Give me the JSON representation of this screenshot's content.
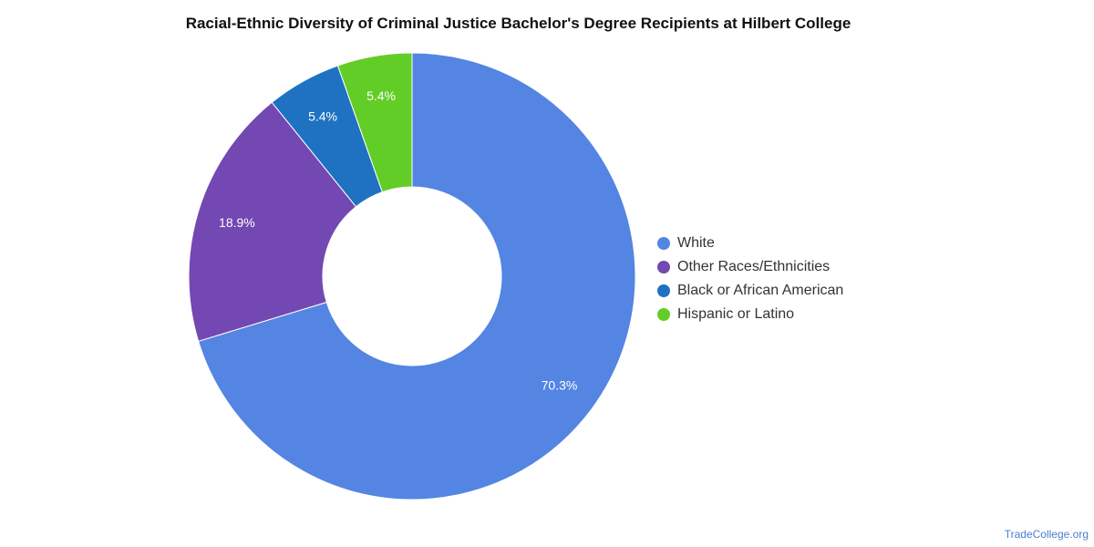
{
  "chart_data": {
    "type": "pie",
    "variant": "donut",
    "title": "Racial-Ethnic Diversity of Criminal Justice Bachelor's Degree Recipients at Hilbert College",
    "slices": [
      {
        "label": "White",
        "value": 70.3,
        "display": "70.3%",
        "color": "#5485e3"
      },
      {
        "label": "Other Races/Ethnicities",
        "value": 18.9,
        "display": "18.9%",
        "color": "#7448b2"
      },
      {
        "label": "Black or African American",
        "value": 5.4,
        "display": "5.4%",
        "color": "#1f72c2"
      },
      {
        "label": "Hispanic or Latino",
        "value": 5.4,
        "display": "5.4%",
        "color": "#63cd28"
      }
    ],
    "legend_position": "right",
    "start_angle_deg": 0,
    "direction": "clockwise"
  },
  "watermark": "TradeCollege.org"
}
